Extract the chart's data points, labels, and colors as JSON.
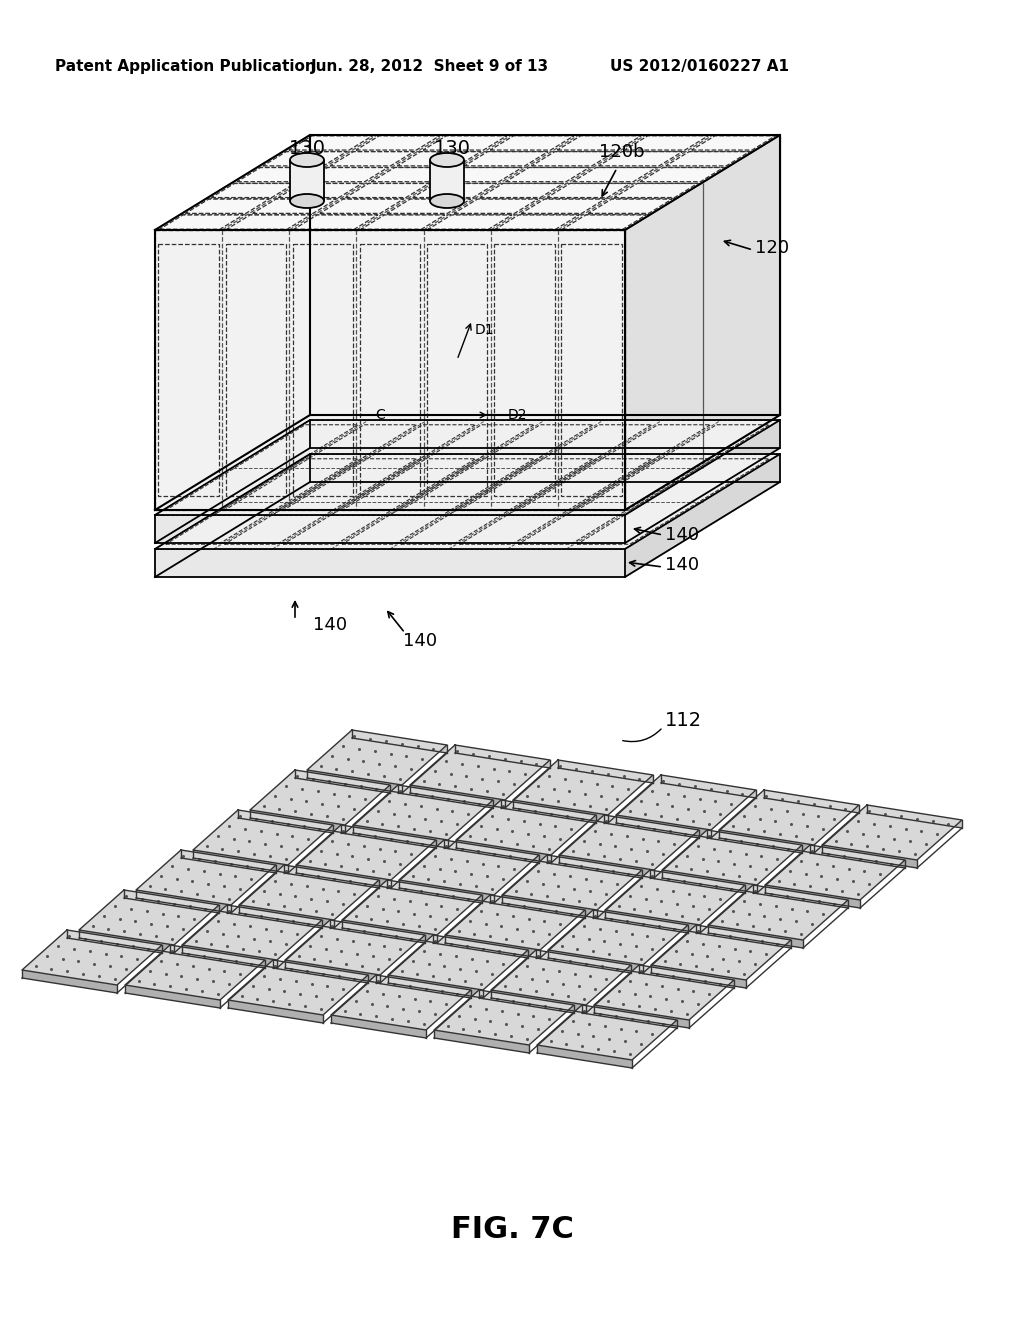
{
  "header_left": "Patent Application Publication",
  "header_mid": "Jun. 28, 2012  Sheet 9 of 13",
  "header_right": "US 2012/0160227 A1",
  "fig_label": "FIG. 7C",
  "bg_color": "#ffffff",
  "line_color": "#000000",
  "label_130_1": "130",
  "label_130_2": "130",
  "label_120b": "120b",
  "label_120": "120",
  "label_140_1": "140",
  "label_140_2": "140",
  "label_140_3": "140",
  "label_140_4": "140",
  "label_D1": "D1",
  "label_D2": "D2",
  "label_C": "C",
  "label_112": "112"
}
